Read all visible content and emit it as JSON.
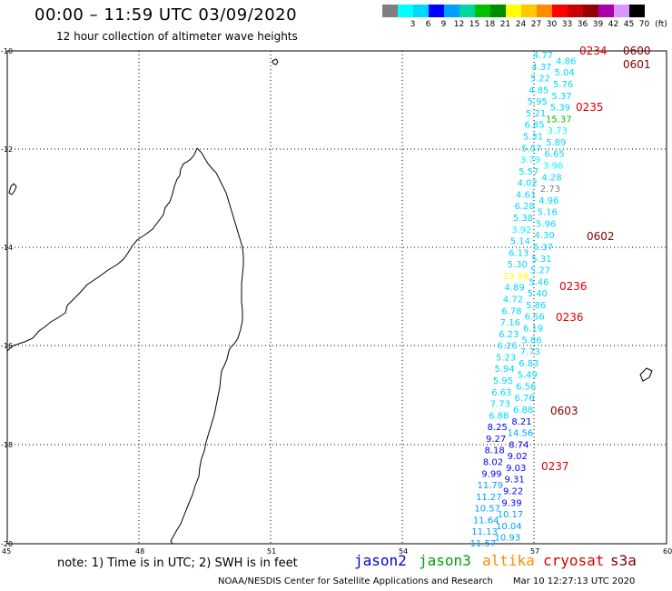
{
  "header": {
    "title": "00:00 – 11:59 UTC 03/09/2020",
    "subtitle": "12 hour collection of altimeter wave heights"
  },
  "color_scale": {
    "unit": "(ft)",
    "swatches": [
      {
        "label": "",
        "color": "#7f7f7f"
      },
      {
        "label": "3",
        "color": "#00ffff"
      },
      {
        "label": "6",
        "color": "#00d7ff"
      },
      {
        "label": "9",
        "color": "#0000ff"
      },
      {
        "label": "12",
        "color": "#00a0ff"
      },
      {
        "label": "15",
        "color": "#00d7a0"
      },
      {
        "label": "18",
        "color": "#00c000"
      },
      {
        "label": "21",
        "color": "#008c00"
      },
      {
        "label": "24",
        "color": "#ffff00"
      },
      {
        "label": "27",
        "color": "#ffc800"
      },
      {
        "label": "30",
        "color": "#ff8c00"
      },
      {
        "label": "33",
        "color": "#ff0000"
      },
      {
        "label": "36",
        "color": "#c80000"
      },
      {
        "label": "39",
        "color": "#960000"
      },
      {
        "label": "42",
        "color": "#aa00aa"
      },
      {
        "label": "45",
        "color": "#dc96ff"
      },
      {
        "label": "70",
        "color": "#000000"
      }
    ]
  },
  "axes": {
    "lat_labels": [
      "-10",
      "-12",
      "-14",
      "-16",
      "-18",
      "-20"
    ],
    "lon_labels": [
      "45",
      "48",
      "51",
      "54",
      "57",
      "60"
    ]
  },
  "passes": [
    {
      "time": "0234",
      "color": "#dd0000"
    },
    {
      "time": "0600",
      "color": "#800000"
    },
    {
      "time": "0601",
      "color": "#800000"
    },
    {
      "time": "0235",
      "color": "#dd0000"
    },
    {
      "time": "0602",
      "color": "#800000"
    },
    {
      "time": "0236",
      "color": "#dd0000"
    },
    {
      "time": "0236",
      "color": "#dd0000"
    },
    {
      "time": "0603",
      "color": "#800000"
    },
    {
      "time": "0237",
      "color": "#dd0000"
    }
  ],
  "observations": [
    {
      "v": "4.77",
      "c": "#00d7ff"
    },
    {
      "v": "4.86",
      "c": "#00d7ff"
    },
    {
      "v": "4.37",
      "c": "#00d7ff"
    },
    {
      "v": "5.04",
      "c": "#00d7ff"
    },
    {
      "v": "5.22",
      "c": "#00d7ff"
    },
    {
      "v": "5.76",
      "c": "#00d7ff"
    },
    {
      "v": "4.85",
      "c": "#00d7ff"
    },
    {
      "v": "5.37",
      "c": "#00d7ff"
    },
    {
      "v": "5.95",
      "c": "#00d7ff"
    },
    {
      "v": "5.39",
      "c": "#00d7ff"
    },
    {
      "v": "5.21",
      "c": "#00d7ff"
    },
    {
      "v": "15.37",
      "c": "#00c000"
    },
    {
      "v": "6.85",
      "c": "#00d7ff"
    },
    {
      "v": "3.73",
      "c": "#00ffff"
    },
    {
      "v": "5.31",
      "c": "#00d7ff"
    },
    {
      "v": "5.89",
      "c": "#00d7ff"
    },
    {
      "v": "5.57",
      "c": "#00d7ff"
    },
    {
      "v": "6.65",
      "c": "#00d7ff"
    },
    {
      "v": "3.79",
      "c": "#00ffff"
    },
    {
      "v": "3.96",
      "c": "#00ffff"
    },
    {
      "v": "5.57",
      "c": "#00d7ff"
    },
    {
      "v": "4.28",
      "c": "#00d7ff"
    },
    {
      "v": "4.02",
      "c": "#00d7ff"
    },
    {
      "v": "2.73",
      "c": "#7f7f7f"
    },
    {
      "v": "4.61",
      "c": "#00d7ff"
    },
    {
      "v": "4.96",
      "c": "#00d7ff"
    },
    {
      "v": "6.28",
      "c": "#00d7ff"
    },
    {
      "v": "5.16",
      "c": "#00d7ff"
    },
    {
      "v": "5.38",
      "c": "#00d7ff"
    },
    {
      "v": "5.96",
      "c": "#00d7ff"
    },
    {
      "v": "3.92",
      "c": "#00ffff"
    },
    {
      "v": "4.30",
      "c": "#00d7ff"
    },
    {
      "v": "5.14",
      "c": "#00d7ff"
    },
    {
      "v": "6.37",
      "c": "#00d7ff"
    },
    {
      "v": "6.13",
      "c": "#00d7ff"
    },
    {
      "v": "5.31",
      "c": "#00d7ff"
    },
    {
      "v": "5.30",
      "c": "#00d7ff"
    },
    {
      "v": "5.27",
      "c": "#00d7ff"
    },
    {
      "v": "23.98",
      "c": "#ffff00"
    },
    {
      "v": "5.46",
      "c": "#00d7ff"
    },
    {
      "v": "4.89",
      "c": "#00d7ff"
    },
    {
      "v": "5.40",
      "c": "#00d7ff"
    },
    {
      "v": "4.72",
      "c": "#00d7ff"
    },
    {
      "v": "5.86",
      "c": "#00d7ff"
    },
    {
      "v": "6.78",
      "c": "#00d7ff"
    },
    {
      "v": "6.56",
      "c": "#00d7ff"
    },
    {
      "v": "7.16",
      "c": "#00d7ff"
    },
    {
      "v": "6.19",
      "c": "#00d7ff"
    },
    {
      "v": "6.23",
      "c": "#00d7ff"
    },
    {
      "v": "5.86",
      "c": "#00d7ff"
    },
    {
      "v": "6.26",
      "c": "#00d7ff"
    },
    {
      "v": "7.73",
      "c": "#00d7ff"
    },
    {
      "v": "5.23",
      "c": "#00d7ff"
    },
    {
      "v": "6.83",
      "c": "#00d7ff"
    },
    {
      "v": "5.94",
      "c": "#00d7ff"
    },
    {
      "v": "5.49",
      "c": "#00d7ff"
    },
    {
      "v": "5.95",
      "c": "#00d7ff"
    },
    {
      "v": "6.56",
      "c": "#00d7ff"
    },
    {
      "v": "6.63",
      "c": "#00d7ff"
    },
    {
      "v": "6.76",
      "c": "#00d7ff"
    },
    {
      "v": "7.73",
      "c": "#00d7ff"
    },
    {
      "v": "6.88",
      "c": "#00d7ff"
    },
    {
      "v": "6.88",
      "c": "#00d7ff"
    },
    {
      "v": "8.21",
      "c": "#0000ff"
    },
    {
      "v": "8.25",
      "c": "#0000ff"
    },
    {
      "v": "14.56",
      "c": "#00a0ff"
    },
    {
      "v": "9.27",
      "c": "#0000ff"
    },
    {
      "v": "8.74",
      "c": "#0000ff"
    },
    {
      "v": "8.18",
      "c": "#0000ff"
    },
    {
      "v": "9.02",
      "c": "#0000ff"
    },
    {
      "v": "8.02",
      "c": "#0000ff"
    },
    {
      "v": "9.03",
      "c": "#0000ff"
    },
    {
      "v": "9.99",
      "c": "#0000ff"
    },
    {
      "v": "9.31",
      "c": "#0000ff"
    },
    {
      "v": "11.79",
      "c": "#00a0ff"
    },
    {
      "v": "9.22",
      "c": "#0000ff"
    },
    {
      "v": "11.27",
      "c": "#00a0ff"
    },
    {
      "v": "9.39",
      "c": "#0000ff"
    },
    {
      "v": "10.57",
      "c": "#00a0ff"
    },
    {
      "v": "10.17",
      "c": "#00a0ff"
    },
    {
      "v": "11.64",
      "c": "#00a0ff"
    },
    {
      "v": "10.04",
      "c": "#00a0ff"
    },
    {
      "v": "11.13",
      "c": "#00a0ff"
    },
    {
      "v": "10.93",
      "c": "#00a0ff"
    },
    {
      "v": "11.57",
      "c": "#00a0ff"
    }
  ],
  "note": "note: 1) Time is in UTC; 2) SWH is in feet",
  "legend": [
    {
      "name": "jason2",
      "color": "#0000dd"
    },
    {
      "name": "jason3",
      "color": "#00a000"
    },
    {
      "name": "altika",
      "color": "#ff8c00"
    },
    {
      "name": "cryosat",
      "color": "#dd0000"
    },
    {
      "name": "s3a",
      "color": "#800000"
    }
  ],
  "footer": {
    "credit": "NOAA/NESDIS Center for Satellite Applications and Research",
    "date": "Mar 10 12:27:13 UTC 2020"
  }
}
